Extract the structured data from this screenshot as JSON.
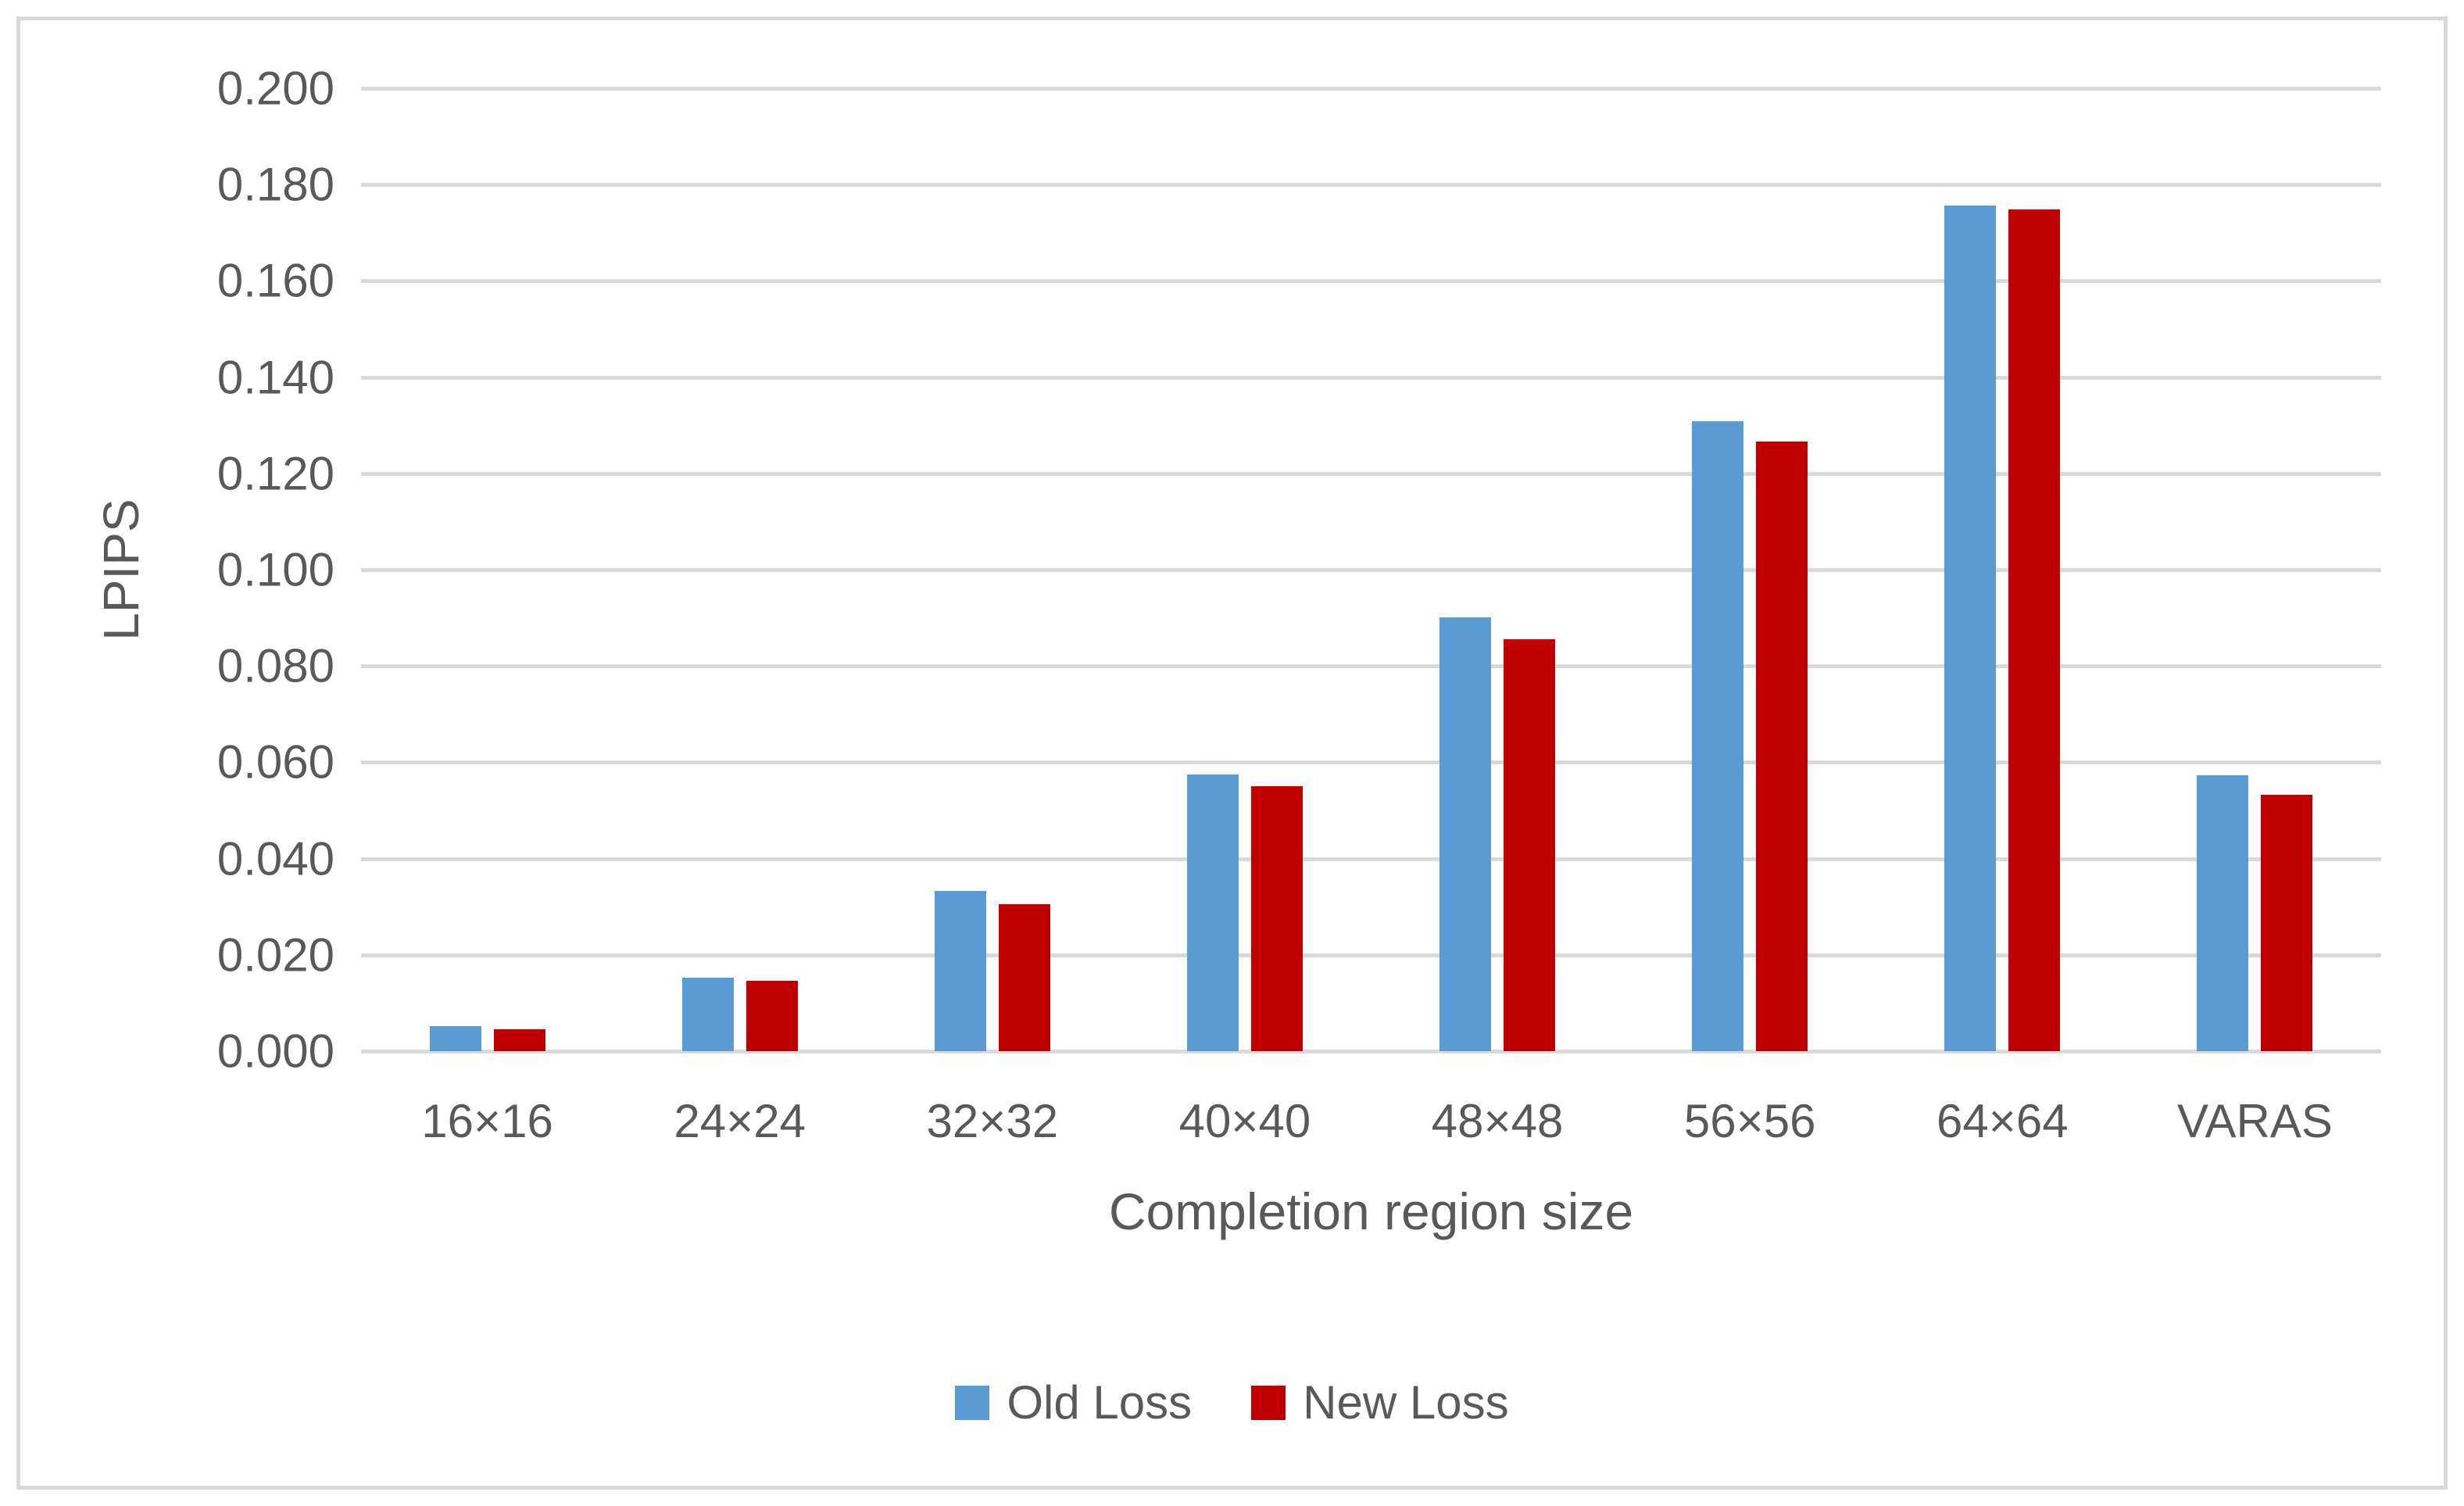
{
  "chart_data": {
    "type": "bar",
    "title": "",
    "categories": [
      "16×16",
      "24×24",
      "32×32",
      "40×40",
      "48×48",
      "56×56",
      "64×64",
      "VARAS"
    ],
    "series": [
      {
        "name": "Old Loss",
        "color": "#5B9BD5",
        "values": [
          0.0052,
          0.0153,
          0.0333,
          0.0574,
          0.0901,
          0.1309,
          0.1756,
          0.0573
        ]
      },
      {
        "name": "New Loss",
        "color": "#C00000",
        "values": [
          0.0045,
          0.0146,
          0.0306,
          0.055,
          0.0855,
          0.1266,
          0.1748,
          0.0533
        ]
      }
    ],
    "xlabel": "Completion region size",
    "ylabel": "LPIPS",
    "ylim": [
      0,
      0.2
    ],
    "ytick_step": 0.02,
    "ytick_labels": [
      "0.000",
      "0.020",
      "0.040",
      "0.060",
      "0.080",
      "0.100",
      "0.120",
      "0.140",
      "0.160",
      "0.180",
      "0.200"
    ],
    "grid": true,
    "legend_position": "bottom"
  },
  "colors": {
    "gridline": "#D9D9D9",
    "figure_border": "#D9D9D9",
    "axis_text": "#595959",
    "background": "#FFFFFF"
  }
}
